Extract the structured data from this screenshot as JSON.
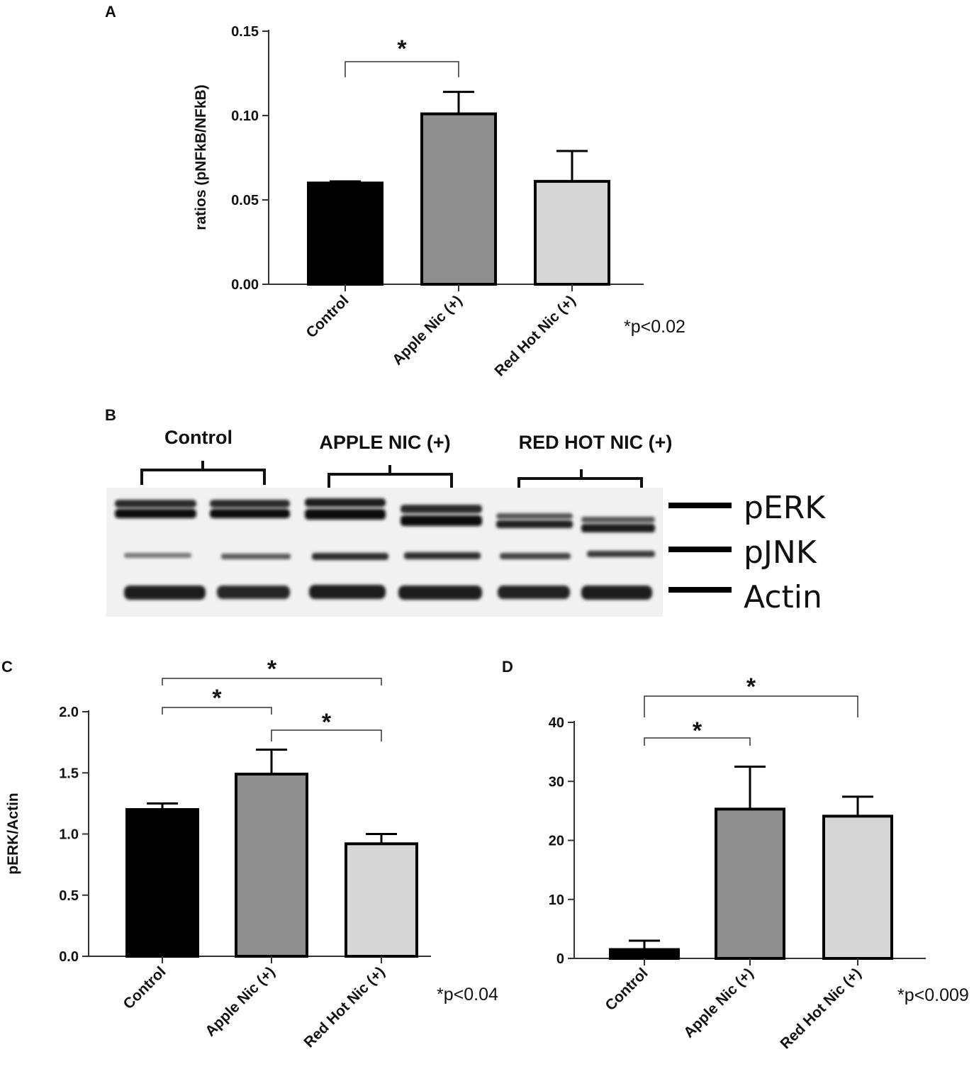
{
  "colors": {
    "control": "#000000",
    "apple": "#8f8f8f",
    "redhot": "#d6d6d6",
    "stroke": "#000000",
    "axis": "#333333"
  },
  "panel_letters": {
    "a": "A",
    "b": "B",
    "c": "C",
    "d": "D"
  },
  "blot": {
    "group_labels": [
      "Control",
      "APPLE NIC (+)",
      "RED HOT NIC (+)"
    ],
    "band_labels": [
      "pERK",
      "pJNK",
      "Actin"
    ]
  },
  "chart_data": [
    {
      "type": "bar",
      "panel": "A",
      "categories": [
        "Control",
        "Apple Nic (+)",
        "Red Hot Nic (+)"
      ],
      "values": [
        0.06,
        0.101,
        0.061
      ],
      "errors": [
        0.001,
        0.013,
        0.018
      ],
      "ylabel": "ratios (pNFkB/NFkB)",
      "ylim": [
        0,
        0.15
      ],
      "yticks": [
        "0.00",
        "0.05",
        "0.10",
        "0.15"
      ],
      "ytick_values": [
        0,
        0.05,
        0.1,
        0.15
      ],
      "annotation": "*p<0.02",
      "significance": [
        {
          "from": 0,
          "to": 1,
          "label": "*"
        }
      ]
    },
    {
      "type": "bar",
      "panel": "C",
      "categories": [
        "Control",
        "Apple Nic (+)",
        "Red Hot Nic (+)"
      ],
      "values": [
        1.2,
        1.49,
        0.92
      ],
      "errors": [
        0.05,
        0.2,
        0.08
      ],
      "ylabel": "pERK/Actin",
      "ylim": [
        0,
        2.0
      ],
      "yticks": [
        "0.0",
        "0.5",
        "1.0",
        "1.5",
        "2.0"
      ],
      "ytick_values": [
        0,
        0.5,
        1.0,
        1.5,
        2.0
      ],
      "annotation": "*p<0.04",
      "significance": [
        {
          "from": 0,
          "to": 2,
          "label": "*"
        },
        {
          "from": 0,
          "to": 1,
          "label": "*"
        },
        {
          "from": 1,
          "to": 2,
          "label": "*"
        }
      ]
    },
    {
      "type": "bar",
      "panel": "D",
      "categories": [
        "Control",
        "Apple Nic (+)",
        "Red Hot Nic (+)"
      ],
      "values": [
        1.5,
        25.3,
        24.1
      ],
      "errors": [
        1.5,
        7.2,
        3.3
      ],
      "ylabel": "",
      "ylim": [
        0,
        40
      ],
      "yticks": [
        "0",
        "10",
        "20",
        "30",
        "40"
      ],
      "ytick_values": [
        0,
        10,
        20,
        30,
        40
      ],
      "annotation": "*p<0.009",
      "significance": [
        {
          "from": 0,
          "to": 2,
          "label": "*"
        },
        {
          "from": 0,
          "to": 1,
          "label": "*"
        }
      ]
    }
  ]
}
